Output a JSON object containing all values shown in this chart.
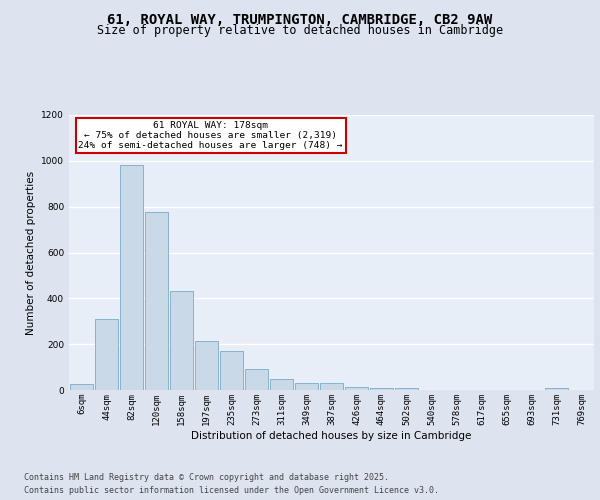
{
  "title1": "61, ROYAL WAY, TRUMPINGTON, CAMBRIDGE, CB2 9AW",
  "title2": "Size of property relative to detached houses in Cambridge",
  "xlabel": "Distribution of detached houses by size in Cambridge",
  "ylabel": "Number of detached properties",
  "categories": [
    "6sqm",
    "44sqm",
    "82sqm",
    "120sqm",
    "158sqm",
    "197sqm",
    "235sqm",
    "273sqm",
    "311sqm",
    "349sqm",
    "387sqm",
    "426sqm",
    "464sqm",
    "502sqm",
    "540sqm",
    "578sqm",
    "617sqm",
    "655sqm",
    "693sqm",
    "731sqm",
    "769sqm"
  ],
  "values": [
    25,
    310,
    980,
    775,
    430,
    215,
    170,
    90,
    50,
    30,
    30,
    15,
    10,
    7,
    1,
    0,
    0,
    0,
    0,
    8,
    0
  ],
  "bar_color": "#c9d9e8",
  "bar_edge_color": "#7aaac8",
  "annotation_box_text": "61 ROYAL WAY: 178sqm\n← 75% of detached houses are smaller (2,319)\n24% of semi-detached houses are larger (748) →",
  "annotation_box_color": "#ffffff",
  "annotation_box_edge_color": "#cc0000",
  "annotation_bar_index": 4,
  "ylim": [
    0,
    1200
  ],
  "yticks": [
    0,
    200,
    400,
    600,
    800,
    1000,
    1200
  ],
  "background_color": "#dde3ef",
  "plot_background_color": "#e8eef8",
  "grid_color": "#ffffff",
  "footer_line1": "Contains HM Land Registry data © Crown copyright and database right 2025.",
  "footer_line2": "Contains public sector information licensed under the Open Government Licence v3.0.",
  "title1_fontsize": 10,
  "title2_fontsize": 8.5,
  "annotation_fontsize": 6.8,
  "axis_label_fontsize": 7.5,
  "tick_fontsize": 6.5,
  "footer_fontsize": 6.0
}
